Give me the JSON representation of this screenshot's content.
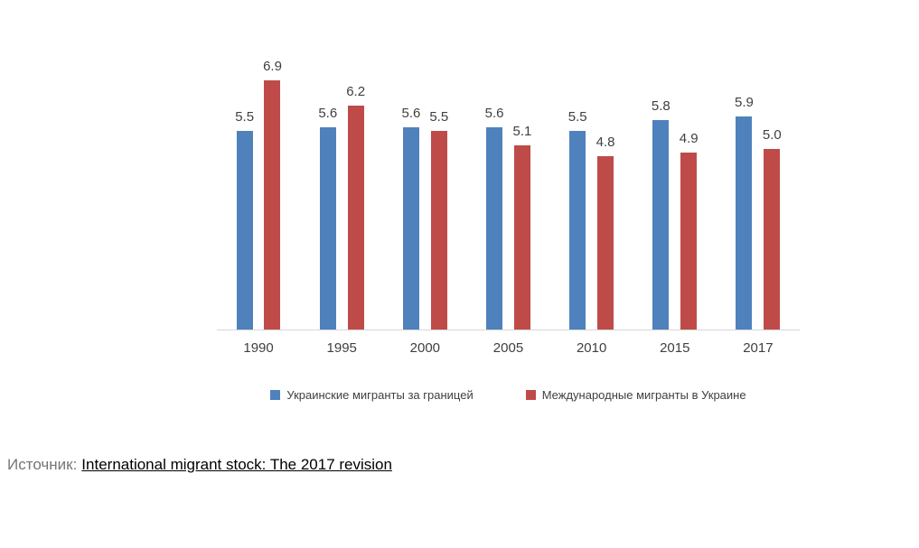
{
  "chart_data": {
    "type": "bar",
    "categories": [
      "1990",
      "1995",
      "2000",
      "2005",
      "2010",
      "2015",
      "2017"
    ],
    "series": [
      {
        "name": "Украинские мигранты за границей",
        "color": "#4F81BD",
        "values": [
          5.5,
          5.6,
          5.6,
          5.6,
          5.5,
          5.8,
          5.9
        ],
        "labels": [
          "5.5",
          "5.6",
          "5.6",
          "5.6",
          "5.5",
          "5.8",
          "5.9"
        ]
      },
      {
        "name": "Международные мигранты в Украине",
        "color": "#BE4B48",
        "values": [
          6.9,
          6.2,
          5.5,
          5.1,
          4.8,
          4.9,
          5.0
        ],
        "labels": [
          "6.9",
          "6.2",
          "5.5",
          "5.1",
          "4.8",
          "4.9",
          "5.0"
        ]
      }
    ],
    "title": "",
    "xlabel": "",
    "ylabel": "",
    "ylim": [
      0,
      7
    ],
    "grid": false,
    "legend_position": "bottom"
  },
  "source": {
    "label": "Источник:",
    "link_text": "International migrant stock: The 2017 revision"
  }
}
